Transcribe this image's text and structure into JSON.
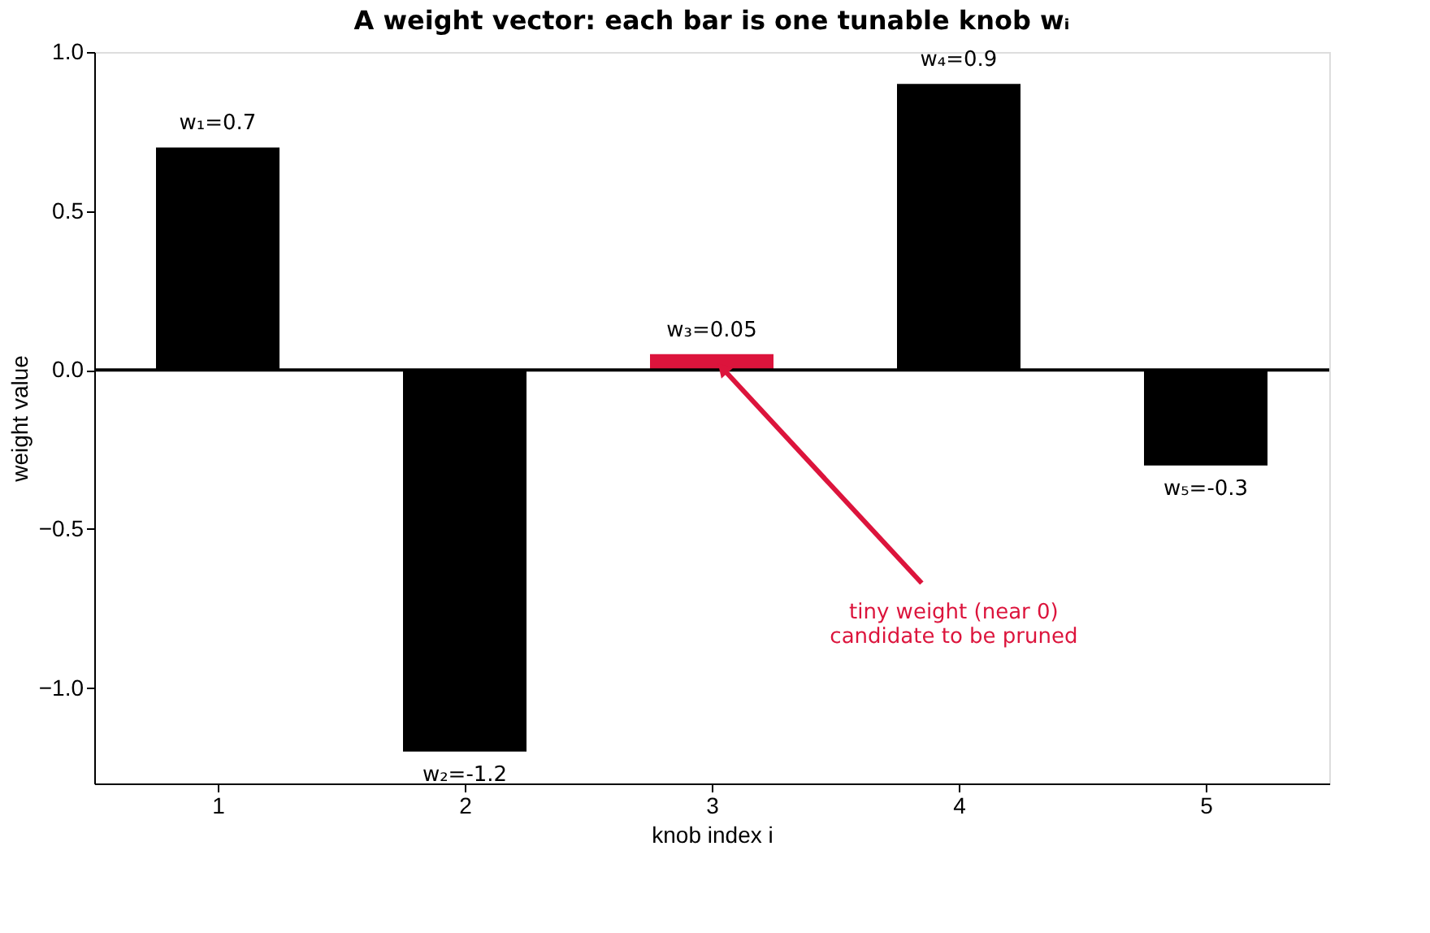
{
  "chart_data": {
    "type": "bar",
    "title": "A weight vector: each bar is one tunable knob wᵢ",
    "xlabel": "knob index i",
    "ylabel": "weight value",
    "x": [
      1,
      2,
      3,
      4,
      5
    ],
    "values": [
      0.7,
      -1.2,
      0.05,
      0.9,
      -0.3
    ],
    "colors": [
      "#000000",
      "#000000",
      "#dc143c",
      "#000000",
      "#000000"
    ],
    "value_labels": [
      "w₁=0.7",
      "w₂=-1.2",
      "w₃=0.05",
      "w₄=0.9",
      "w₅=-0.3"
    ],
    "xlim": [
      0.5,
      5.5
    ],
    "xticks": [
      1,
      2,
      3,
      4,
      5
    ],
    "ylim": [
      -1.3,
      1.0
    ],
    "yticks": [
      {
        "value": -1.0,
        "label": "−1.0"
      },
      {
        "value": -0.5,
        "label": "−0.5"
      },
      {
        "value": 0.0,
        "label": "0.0"
      },
      {
        "value": 0.5,
        "label": "0.5"
      },
      {
        "value": 1.0,
        "label": "1.0"
      }
    ],
    "ref_lines": [
      {
        "axis": "y",
        "value": 0,
        "color": "#000000"
      }
    ],
    "annotations": [
      "tiny weight (near 0)\ncandidate to be pruned"
    ],
    "grid": false
  }
}
